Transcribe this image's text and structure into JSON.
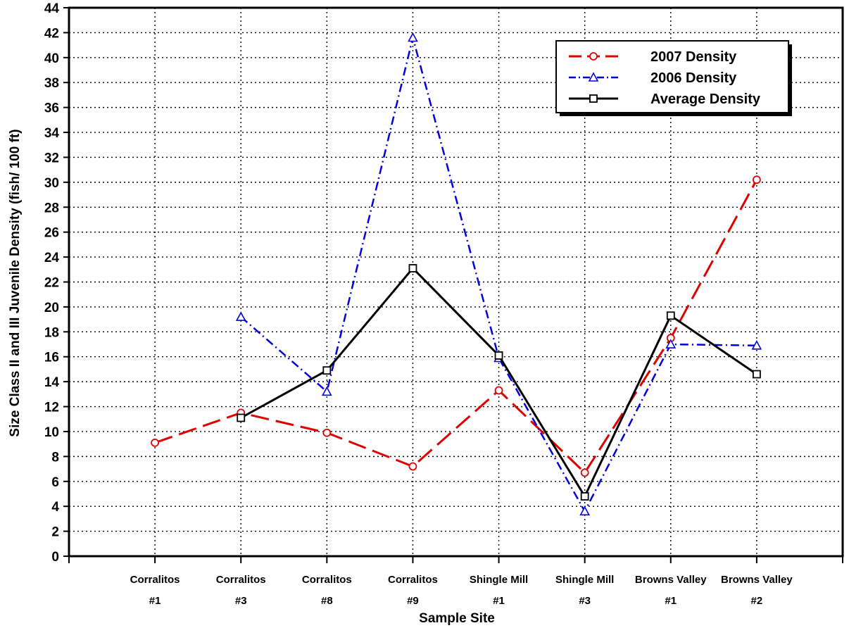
{
  "chart_data": {
    "type": "line",
    "title": "",
    "xlabel": "Sample Site",
    "ylabel": "Size Class II and III Juvenile Density (fish/ 100 ft)",
    "ylim": [
      0,
      44
    ],
    "ytick_step": 2,
    "grid": true,
    "legend_position": "top-right",
    "categories": [
      {
        "line1": "Corralitos",
        "line2": "#1"
      },
      {
        "line1": "Corralitos",
        "line2": "#3"
      },
      {
        "line1": "Corralitos",
        "line2": "#8"
      },
      {
        "line1": "Corralitos",
        "line2": "#9"
      },
      {
        "line1": "Shingle Mill",
        "line2": "#1"
      },
      {
        "line1": "Shingle Mill",
        "line2": "#3"
      },
      {
        "line1": "Browns Valley",
        "line2": "#1"
      },
      {
        "line1": "Browns Valley",
        "line2": "#2"
      }
    ],
    "series": [
      {
        "name": "2007 Density",
        "color": "#e00000",
        "marker": "circle",
        "dash": "long-dash",
        "values": [
          9.1,
          11.5,
          9.9,
          7.2,
          13.3,
          6.7,
          17.5,
          30.2
        ]
      },
      {
        "name": "2006 Density",
        "color": "#0000e0",
        "marker": "triangle",
        "dash": "dash-dot",
        "values": [
          null,
          19.2,
          13.2,
          41.6,
          15.9,
          3.6,
          17.0,
          16.9
        ]
      },
      {
        "name": "Average Density",
        "color": "#000000",
        "marker": "square",
        "dash": "solid",
        "values": [
          null,
          11.1,
          14.9,
          23.1,
          16.1,
          4.8,
          19.3,
          14.6
        ]
      }
    ]
  }
}
